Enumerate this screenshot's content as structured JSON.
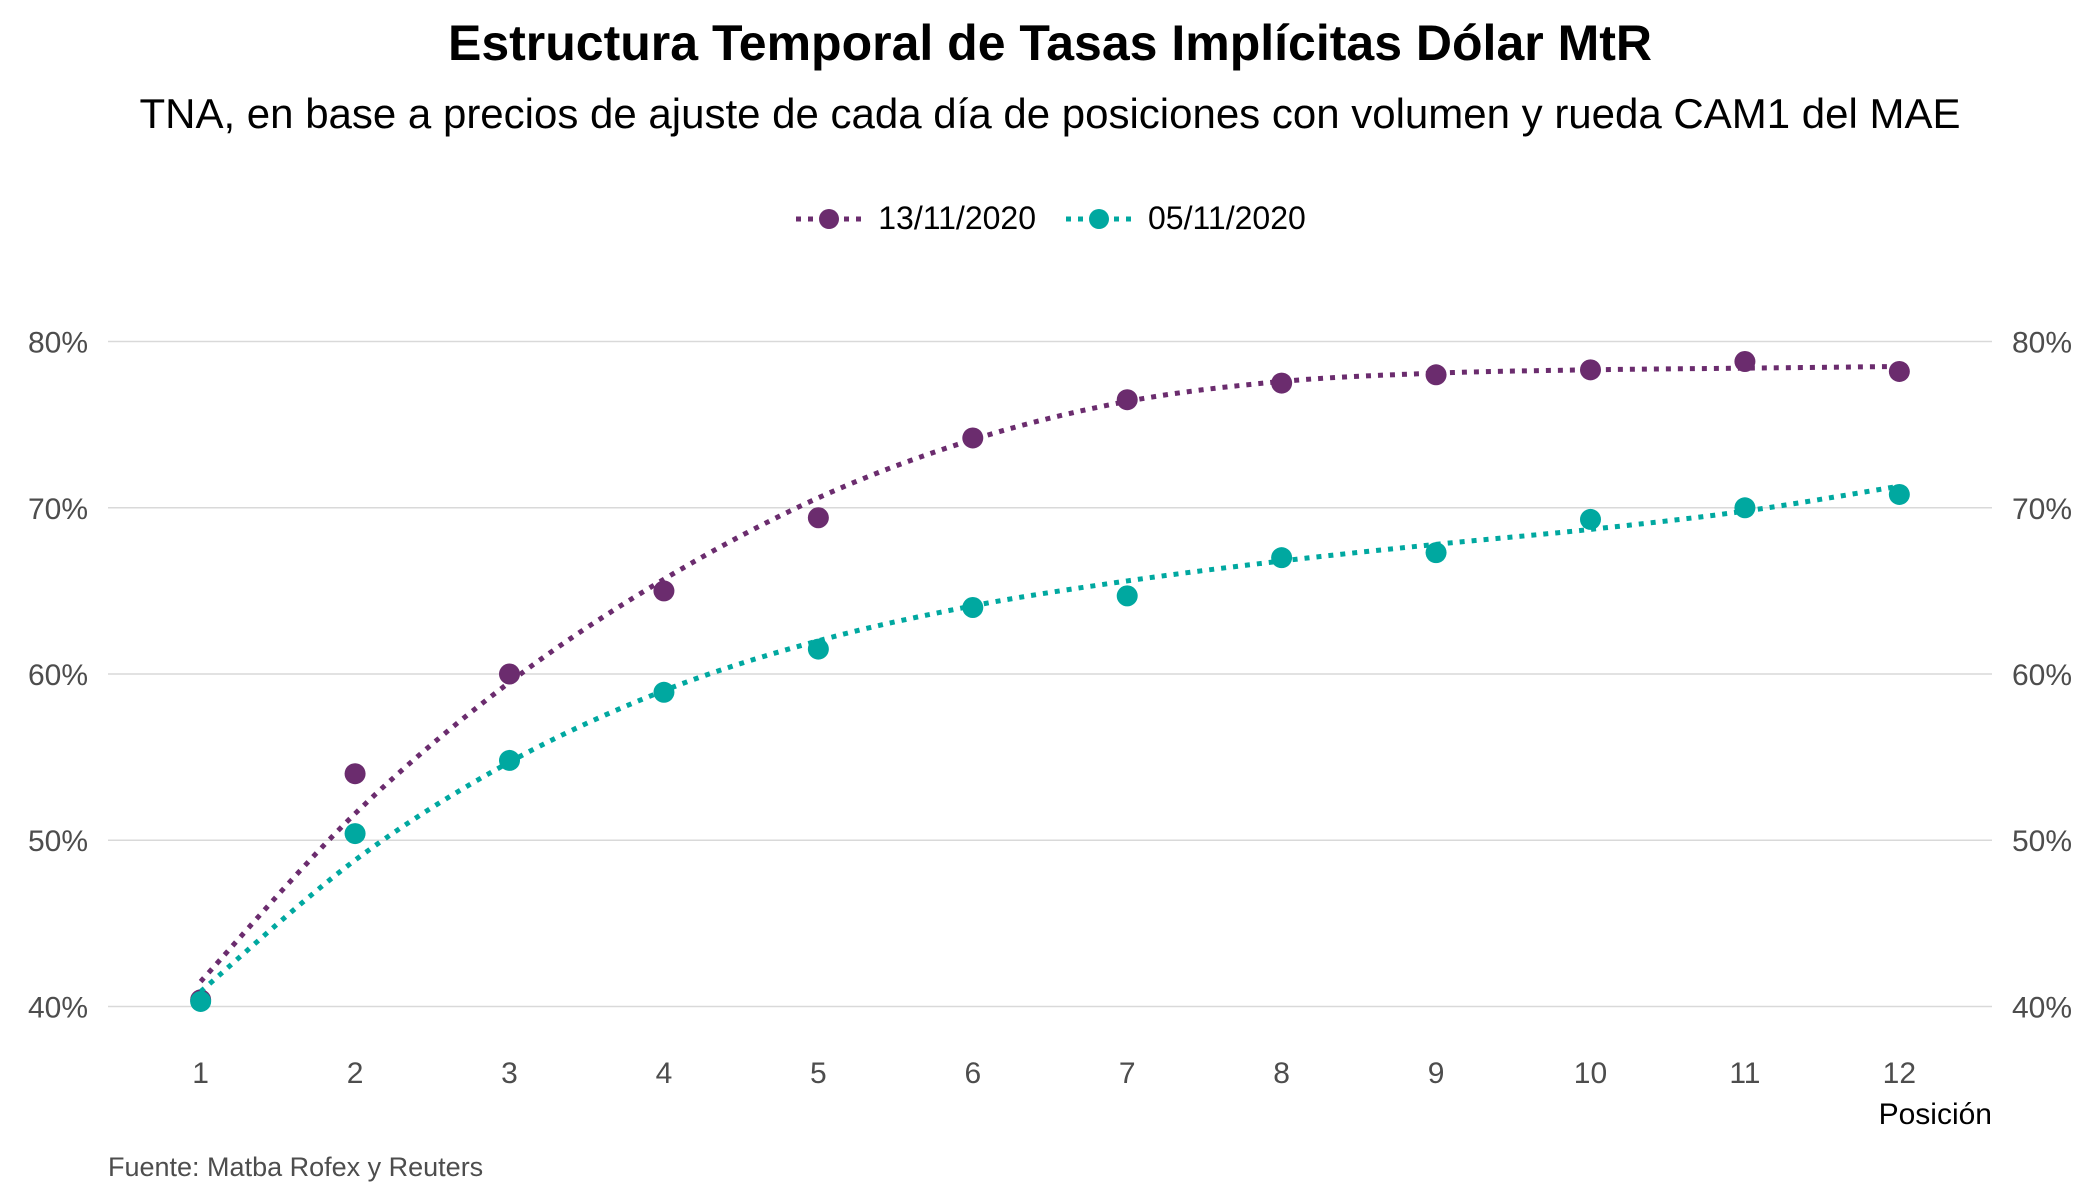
{
  "title": "Estructura Temporal de Tasas Implícitas Dólar MtR",
  "subtitle": "TNA, en base a precios de ajuste de cada día de posiciones con volumen y rueda CAM1 del MAE",
  "source": "Fuente: Matba Rofex y Reuters",
  "chart_data": {
    "type": "scatter",
    "title": "Estructura Temporal de Tasas Implícitas Dólar MtR",
    "subtitle": "TNA, en base a precios de ajuste de cada día de posiciones con volumen y rueda CAM1 del MAE",
    "xlabel": "Posición",
    "ylabel": "",
    "x": [
      1,
      2,
      3,
      4,
      5,
      6,
      7,
      8,
      9,
      10,
      11,
      12
    ],
    "xlim": [
      0.4,
      12.6
    ],
    "ylim": [
      37.5,
      82.5
    ],
    "yticks": [
      40,
      50,
      60,
      70,
      80
    ],
    "ytick_labels": [
      "40%",
      "50%",
      "60%",
      "70%",
      "80%"
    ],
    "secondary_y_axis": true,
    "grid": "horizontal",
    "legend_position": "top",
    "trend_line": "dotted smooth fit",
    "series": [
      {
        "name": "13/11/2020",
        "color": "#6b2c6e",
        "values": [
          40.4,
          54.0,
          60.0,
          65.0,
          69.4,
          74.2,
          76.5,
          77.5,
          78.0,
          78.3,
          78.8,
          78.2
        ],
        "trend": [
          41.5,
          51.6,
          59.5,
          65.7,
          70.6,
          74.1,
          76.4,
          77.6,
          78.1,
          78.3,
          78.4,
          78.5
        ]
      },
      {
        "name": "05/11/2020",
        "color": "#00a8a0",
        "values": [
          40.3,
          50.4,
          54.8,
          58.9,
          61.5,
          64.0,
          64.7,
          67.0,
          67.3,
          69.3,
          70.0,
          70.8
        ],
        "trend": [
          40.9,
          48.8,
          54.7,
          59.0,
          62.0,
          64.1,
          65.6,
          66.8,
          67.8,
          68.7,
          69.8,
          71.3
        ]
      }
    ]
  }
}
